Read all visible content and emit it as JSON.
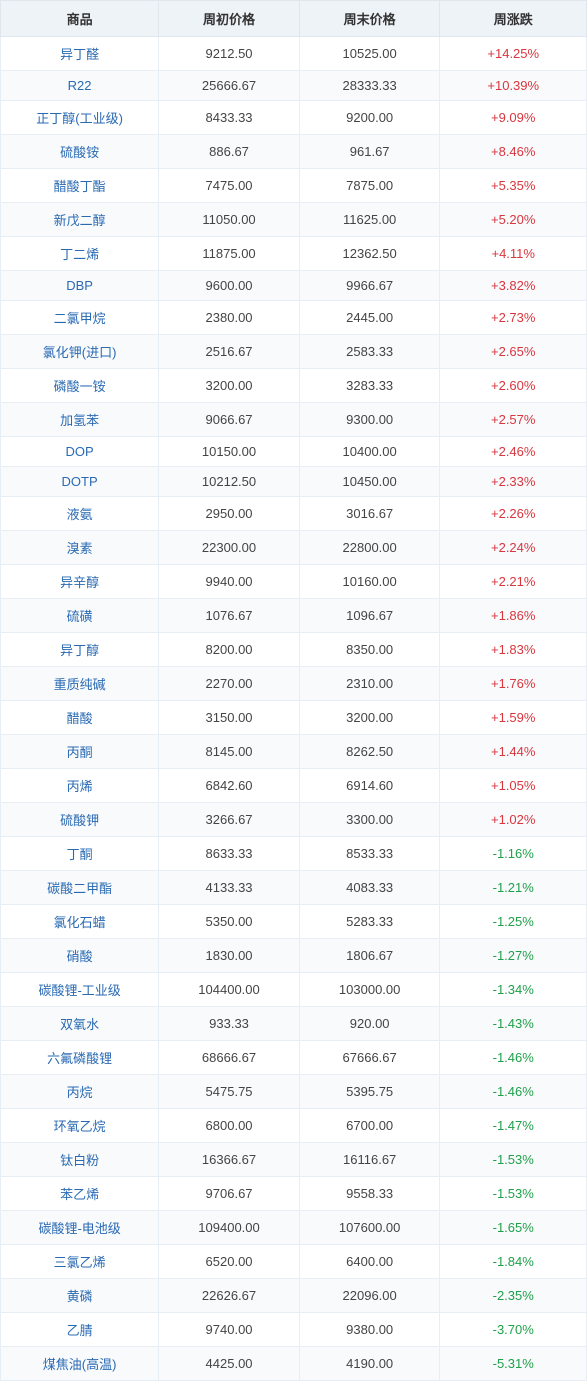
{
  "table": {
    "columns": [
      "商品",
      "周初价格",
      "周末价格",
      "周涨跌"
    ],
    "col_classes": [
      "col-name",
      "col-start",
      "col-end",
      "col-change"
    ],
    "rows": [
      {
        "name": "异丁醛",
        "start": "9212.50",
        "end": "10525.00",
        "change": "+14.25%",
        "dir": "pos"
      },
      {
        "name": "R22",
        "start": "25666.67",
        "end": "28333.33",
        "change": "+10.39%",
        "dir": "pos"
      },
      {
        "name": "正丁醇(工业级)",
        "start": "8433.33",
        "end": "9200.00",
        "change": "+9.09%",
        "dir": "pos"
      },
      {
        "name": "硫酸铵",
        "start": "886.67",
        "end": "961.67",
        "change": "+8.46%",
        "dir": "pos"
      },
      {
        "name": "醋酸丁酯",
        "start": "7475.00",
        "end": "7875.00",
        "change": "+5.35%",
        "dir": "pos"
      },
      {
        "name": "新戊二醇",
        "start": "11050.00",
        "end": "11625.00",
        "change": "+5.20%",
        "dir": "pos"
      },
      {
        "name": "丁二烯",
        "start": "11875.00",
        "end": "12362.50",
        "change": "+4.11%",
        "dir": "pos"
      },
      {
        "name": "DBP",
        "start": "9600.00",
        "end": "9966.67",
        "change": "+3.82%",
        "dir": "pos"
      },
      {
        "name": "二氯甲烷",
        "start": "2380.00",
        "end": "2445.00",
        "change": "+2.73%",
        "dir": "pos"
      },
      {
        "name": "氯化钾(进口)",
        "start": "2516.67",
        "end": "2583.33",
        "change": "+2.65%",
        "dir": "pos"
      },
      {
        "name": "磷酸一铵",
        "start": "3200.00",
        "end": "3283.33",
        "change": "+2.60%",
        "dir": "pos"
      },
      {
        "name": "加氢苯",
        "start": "9066.67",
        "end": "9300.00",
        "change": "+2.57%",
        "dir": "pos"
      },
      {
        "name": "DOP",
        "start": "10150.00",
        "end": "10400.00",
        "change": "+2.46%",
        "dir": "pos"
      },
      {
        "name": "DOTP",
        "start": "10212.50",
        "end": "10450.00",
        "change": "+2.33%",
        "dir": "pos"
      },
      {
        "name": "液氨",
        "start": "2950.00",
        "end": "3016.67",
        "change": "+2.26%",
        "dir": "pos"
      },
      {
        "name": "溴素",
        "start": "22300.00",
        "end": "22800.00",
        "change": "+2.24%",
        "dir": "pos"
      },
      {
        "name": "异辛醇",
        "start": "9940.00",
        "end": "10160.00",
        "change": "+2.21%",
        "dir": "pos"
      },
      {
        "name": "硫磺",
        "start": "1076.67",
        "end": "1096.67",
        "change": "+1.86%",
        "dir": "pos"
      },
      {
        "name": "异丁醇",
        "start": "8200.00",
        "end": "8350.00",
        "change": "+1.83%",
        "dir": "pos"
      },
      {
        "name": "重质纯碱",
        "start": "2270.00",
        "end": "2310.00",
        "change": "+1.76%",
        "dir": "pos"
      },
      {
        "name": "醋酸",
        "start": "3150.00",
        "end": "3200.00",
        "change": "+1.59%",
        "dir": "pos"
      },
      {
        "name": "丙酮",
        "start": "8145.00",
        "end": "8262.50",
        "change": "+1.44%",
        "dir": "pos"
      },
      {
        "name": "丙烯",
        "start": "6842.60",
        "end": "6914.60",
        "change": "+1.05%",
        "dir": "pos"
      },
      {
        "name": "硫酸钾",
        "start": "3266.67",
        "end": "3300.00",
        "change": "+1.02%",
        "dir": "pos"
      },
      {
        "name": "丁酮",
        "start": "8633.33",
        "end": "8533.33",
        "change": "-1.16%",
        "dir": "neg"
      },
      {
        "name": "碳酸二甲酯",
        "start": "4133.33",
        "end": "4083.33",
        "change": "-1.21%",
        "dir": "neg"
      },
      {
        "name": "氯化石蜡",
        "start": "5350.00",
        "end": "5283.33",
        "change": "-1.25%",
        "dir": "neg"
      },
      {
        "name": "硝酸",
        "start": "1830.00",
        "end": "1806.67",
        "change": "-1.27%",
        "dir": "neg"
      },
      {
        "name": "碳酸锂-工业级",
        "start": "104400.00",
        "end": "103000.00",
        "change": "-1.34%",
        "dir": "neg"
      },
      {
        "name": "双氧水",
        "start": "933.33",
        "end": "920.00",
        "change": "-1.43%",
        "dir": "neg"
      },
      {
        "name": "六氟磷酸锂",
        "start": "68666.67",
        "end": "67666.67",
        "change": "-1.46%",
        "dir": "neg"
      },
      {
        "name": "丙烷",
        "start": "5475.75",
        "end": "5395.75",
        "change": "-1.46%",
        "dir": "neg"
      },
      {
        "name": "环氧乙烷",
        "start": "6800.00",
        "end": "6700.00",
        "change": "-1.47%",
        "dir": "neg"
      },
      {
        "name": "钛白粉",
        "start": "16366.67",
        "end": "16116.67",
        "change": "-1.53%",
        "dir": "neg"
      },
      {
        "name": "苯乙烯",
        "start": "9706.67",
        "end": "9558.33",
        "change": "-1.53%",
        "dir": "neg"
      },
      {
        "name": "碳酸锂-电池级",
        "start": "109400.00",
        "end": "107600.00",
        "change": "-1.65%",
        "dir": "neg"
      },
      {
        "name": "三氯乙烯",
        "start": "6520.00",
        "end": "6400.00",
        "change": "-1.84%",
        "dir": "neg"
      },
      {
        "name": "黄磷",
        "start": "22626.67",
        "end": "22096.00",
        "change": "-2.35%",
        "dir": "neg"
      },
      {
        "name": "乙腈",
        "start": "9740.00",
        "end": "9380.00",
        "change": "-3.70%",
        "dir": "neg"
      },
      {
        "name": "煤焦油(高温)",
        "start": "4425.00",
        "end": "4190.00",
        "change": "-5.31%",
        "dir": "neg"
      }
    ],
    "header_bg": "#eef3f8",
    "border_color": "#e8eef5",
    "name_color": "#2a6ab3",
    "num_color": "#444444",
    "pos_color": "#d9363e",
    "neg_color": "#1fa04a",
    "row_alt_bg": "#f8fafc",
    "font_size": 13
  }
}
